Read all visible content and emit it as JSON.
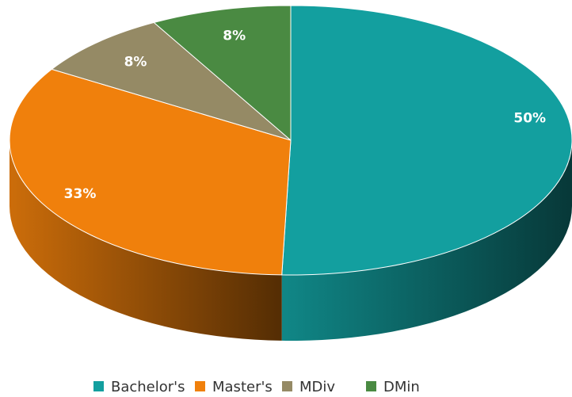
{
  "chart_data": {
    "type": "pie",
    "three_d": true,
    "categories": [
      "Bachelor's",
      "Master's",
      "MDiv",
      "DMin"
    ],
    "values": [
      50,
      33,
      8,
      8
    ],
    "value_labels": [
      "50%",
      "33%",
      "8%",
      "8%"
    ],
    "colors": [
      "#139f9f",
      "#f0800c",
      "#958a65",
      "#4a8a42"
    ],
    "legend": "bottom"
  }
}
